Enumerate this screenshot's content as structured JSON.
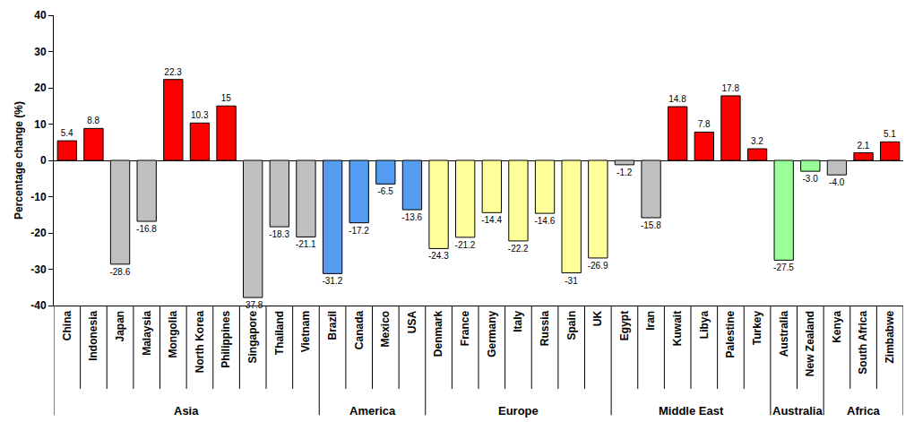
{
  "chart_data": {
    "type": "bar",
    "y_label": "Percentage change (%)",
    "categories": [
      "China",
      "Indonesia",
      "Japan",
      "Malaysia",
      "Mongolia",
      "North Korea",
      "Philippines",
      "Singapore",
      "Thailand",
      "Vietnam",
      "Brazil",
      "Canada",
      "Mexico",
      "USA",
      "Denmark",
      "France",
      "Germany",
      "Italy",
      "Russia",
      "Spain",
      "UK",
      "Egypt",
      "Iran",
      "Kuwait",
      "Libya",
      "Palestine",
      "Turkey",
      "Australia",
      "New Zealand",
      "Kenya",
      "South Africa",
      "Zimbabwe"
    ],
    "groups": [
      "Asia",
      "Asia",
      "Asia",
      "Asia",
      "Asia",
      "Asia",
      "Asia",
      "Asia",
      "Asia",
      "Asia",
      "America",
      "America",
      "America",
      "America",
      "Europe",
      "Europe",
      "Europe",
      "Europe",
      "Europe",
      "Europe",
      "Europe",
      "Middle East",
      "Middle East",
      "Middle East",
      "Middle East",
      "Middle East",
      "Middle East",
      "Australia",
      "Australia",
      "Africa",
      "Africa",
      "Africa"
    ],
    "values": [
      5.4,
      8.8,
      -28.6,
      -16.8,
      22.3,
      10.3,
      15,
      -37.8,
      -18.3,
      -21.1,
      -31.2,
      -17.2,
      -6.5,
      -13.6,
      -24.3,
      -21.2,
      -14.4,
      -22.2,
      -14.6,
      -31,
      -26.9,
      -1.2,
      -15.8,
      14.8,
      7.8,
      17.8,
      3.2,
      -27.5,
      -3.0,
      -4.0,
      2.1,
      5.1
    ],
    "value_labels": [
      "5.4",
      "8.8",
      "-28.6",
      "-16.8",
      "22.3",
      "10.3",
      "15",
      "-37.8",
      "-18.3",
      "-21.1",
      "-31.2",
      "-17.2",
      "-6.5",
      "-13.6",
      "-24.3",
      "-21.2",
      "-14.4",
      "-22.2",
      "-14.6",
      "-31",
      "-26.9",
      "-1.2",
      "-15.8",
      "14.8",
      "7.8",
      "17.8",
      "3.2",
      "-27.5",
      "-3.0",
      "-4.0",
      "2.1",
      "5.1"
    ],
    "colors": [
      "#ff0000",
      "#ff0000",
      "#c0c0c0",
      "#c0c0c0",
      "#ff0000",
      "#ff0000",
      "#ff0000",
      "#c0c0c0",
      "#c0c0c0",
      "#c0c0c0",
      "#559cf0",
      "#559cf0",
      "#559cf0",
      "#559cf0",
      "#ffff99",
      "#ffff99",
      "#ffff99",
      "#ffff99",
      "#ffff99",
      "#ffff99",
      "#ffff99",
      "#c0c0c0",
      "#c0c0c0",
      "#ff0000",
      "#ff0000",
      "#ff0000",
      "#ff0000",
      "#99ff99",
      "#99ff99",
      "#c0c0c0",
      "#ff0000",
      "#ff0000"
    ],
    "ylim": [
      -40,
      40
    ],
    "yticks": [
      -40,
      -30,
      -20,
      -10,
      0,
      10,
      20,
      30,
      40
    ],
    "grid": false,
    "data_labels": true
  }
}
